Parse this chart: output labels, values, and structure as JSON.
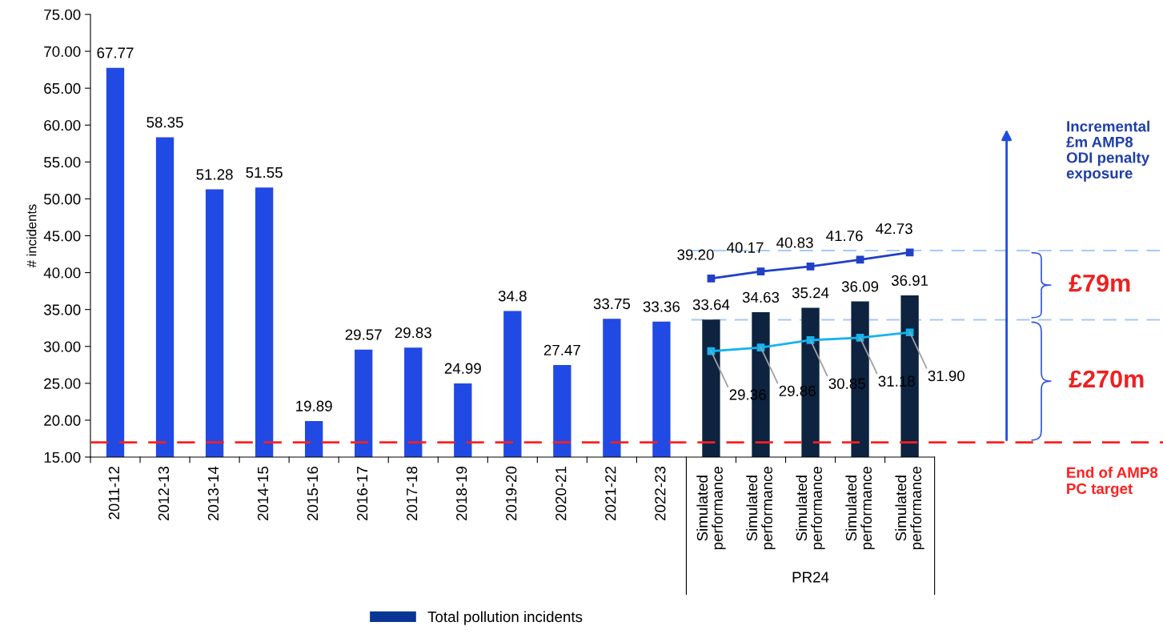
{
  "chart_data": {
    "type": "bar",
    "ylabel": "# incidents",
    "categories": [
      "2011-12",
      "2012-13",
      "2013-14",
      "2014-15",
      "2015-16",
      "2016-17",
      "2017-18",
      "2018-19",
      "2019-20",
      "2020-21",
      "2021-22",
      "2022-23",
      "Simulated\nperformance",
      "Simulated\nperformance",
      "Simulated\nperformance",
      "Simulated\nperformance",
      "Simulated\nperformance"
    ],
    "series": [
      {
        "name": "Total pollution incidents",
        "color": "#0a3594",
        "colors": [
          "#2149e3",
          "#2149e3",
          "#2149e3",
          "#2149e3",
          "#2149e3",
          "#2149e3",
          "#2149e3",
          "#2149e3",
          "#2149e3",
          "#2149e3",
          "#2149e3",
          "#2149e3",
          "#0d2340",
          "#0d2340",
          "#0d2340",
          "#0d2340",
          "#0d2340"
        ],
        "values": [
          67.77,
          58.35,
          51.28,
          51.55,
          19.89,
          29.57,
          29.83,
          24.99,
          34.8,
          27.47,
          33.75,
          33.36,
          33.64,
          34.63,
          35.24,
          36.09,
          36.91
        ],
        "value_labels": [
          "67.77",
          "58.35",
          "51.28",
          "51.55",
          "19.89",
          "29.57",
          "29.83",
          "24.99",
          "34.8",
          "27.47",
          "33.75",
          "33.36",
          "33.64",
          "34.63",
          "35.24",
          "36.09",
          "36.91"
        ]
      },
      {
        "type": "line",
        "color": "#2040c8",
        "values": [
          null,
          null,
          null,
          null,
          null,
          null,
          null,
          null,
          null,
          null,
          null,
          null,
          39.2,
          40.17,
          40.83,
          41.76,
          42.73
        ],
        "value_labels": [
          null,
          null,
          null,
          null,
          null,
          null,
          null,
          null,
          null,
          null,
          null,
          null,
          "39.20",
          "40.17",
          "40.83",
          "41.76",
          "42.73"
        ]
      },
      {
        "type": "line",
        "color": "#14b4ee",
        "values": [
          null,
          null,
          null,
          null,
          null,
          null,
          null,
          null,
          null,
          null,
          null,
          null,
          29.36,
          29.86,
          30.85,
          31.18,
          31.9
        ],
        "value_labels": [
          null,
          null,
          null,
          null,
          null,
          null,
          null,
          null,
          null,
          null,
          null,
          null,
          "29.36",
          "29.86",
          "30.85",
          "31.18",
          "31.90"
        ]
      }
    ],
    "ylim": [
      15,
      75
    ],
    "yticks": [
      {
        "value": 15,
        "label": "15.00"
      },
      {
        "value": 20,
        "label": "20.00"
      },
      {
        "value": 25,
        "label": "25.00"
      },
      {
        "value": 30,
        "label": "30.00"
      },
      {
        "value": 35,
        "label": "35.00"
      },
      {
        "value": 40,
        "label": "40.00"
      },
      {
        "value": 45,
        "label": "45.00"
      },
      {
        "value": 50,
        "label": "50.00"
      },
      {
        "value": 55,
        "label": "55.00"
      },
      {
        "value": 60,
        "label": "60.00"
      },
      {
        "value": 65,
        "label": "65.00"
      },
      {
        "value": 70,
        "label": "70.00"
      },
      {
        "value": 75,
        "label": "75.00"
      }
    ],
    "ref_lines": [
      {
        "axis": "y",
        "value": 17,
        "label": "End of AMP8\nPC target",
        "color": "#ff2020",
        "line_style": "dashed"
      },
      {
        "axis": "y",
        "value": 43.0,
        "color": "#a8c8f8",
        "line_style": "dashed"
      },
      {
        "axis": "y",
        "value": 33.6,
        "color": "#a8c8f8",
        "line_style": "dashed"
      }
    ],
    "annotations": [
      "Incremental\n£m AMP8\nODI penalty\nexposure",
      "£79m",
      "£270m",
      "PR24"
    ],
    "marker": "square",
    "grid": false,
    "legend": "bottom"
  }
}
